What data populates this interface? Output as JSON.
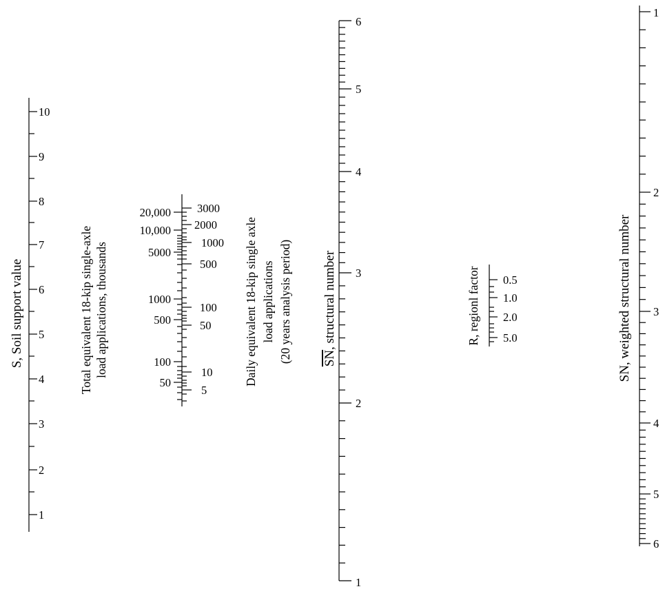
{
  "s_scale": {
    "title": "S, Soil support value",
    "labels": [
      "10",
      "9",
      "8",
      "7",
      "6",
      "5",
      "4",
      "3",
      "2",
      "1"
    ]
  },
  "total_scale": {
    "title_line1": "Total equivalent 18-kip single-axle",
    "title_line2": "load applications, thousands",
    "labels": [
      "20,000",
      "10,000",
      "5000",
      "1000",
      "500",
      "100",
      "50"
    ]
  },
  "daily_scale": {
    "title_line1": "Daily equivalent 18-kip single axle",
    "title_line2": "load applications",
    "title_line3": "(20 years analysis period)",
    "labels": [
      "3000",
      "2000",
      "1000",
      "500",
      "100",
      "50",
      "10",
      "5"
    ]
  },
  "snbar_scale": {
    "title_symbol": "SN",
    "title_rest": ", structural number",
    "labels": [
      "6",
      "5",
      "4",
      "3",
      "2",
      "1"
    ]
  },
  "r_scale": {
    "title": "R, regionl factor",
    "labels": [
      "0.5",
      "1.0",
      "2.0",
      "5.0"
    ]
  },
  "sn_scale": {
    "title": "SN, weighted structural number",
    "labels": [
      "1",
      "2",
      "3",
      "4",
      "5",
      "6"
    ]
  }
}
